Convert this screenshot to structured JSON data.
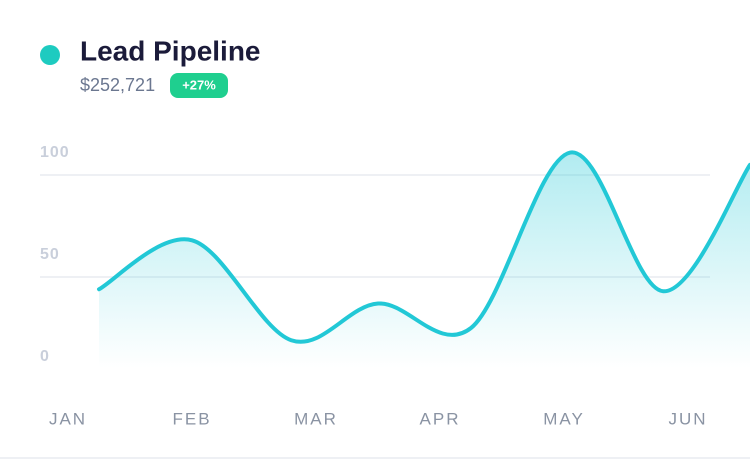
{
  "header": {
    "title": "Lead Pipeline",
    "value": "$252,721",
    "change": "+27%"
  },
  "chart_data": {
    "type": "line",
    "x": [
      0.25,
      1,
      1.8,
      2.5,
      3.25,
      4.05,
      4.8,
      5.5
    ],
    "series": [
      {
        "name": "Lead Pipeline",
        "color": "#22c8d6",
        "values": [
          44,
          68,
          19,
          37,
          25,
          111,
          43,
          105
        ]
      }
    ],
    "xlim": [
      -0.25,
      5.5
    ],
    "xticks": [
      {
        "value": 0,
        "label": "JAN"
      },
      {
        "value": 1,
        "label": "FEB"
      },
      {
        "value": 2,
        "label": "MAR"
      },
      {
        "value": 3,
        "label": "APR"
      },
      {
        "value": 4,
        "label": "MAY"
      },
      {
        "value": 5,
        "label": "JUN"
      }
    ],
    "ylim": [
      0,
      100
    ],
    "yticks": [
      0,
      50,
      100
    ],
    "grid": true
  }
}
